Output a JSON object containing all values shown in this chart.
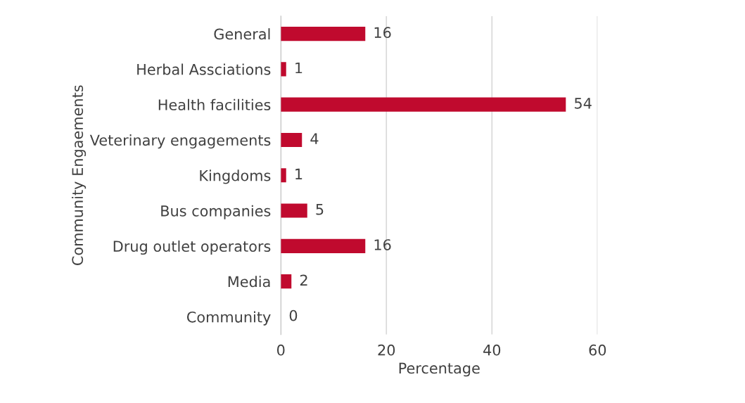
{
  "chart_data": {
    "type": "bar",
    "orientation": "horizontal",
    "categories": [
      "General",
      "Herbal Assciations",
      "Health facilities",
      "Veterinary engagements",
      "Kingdoms",
      "Bus companies",
      "Drug outlet operators",
      "Media",
      "Community"
    ],
    "values": [
      16,
      1,
      54,
      4,
      1,
      5,
      16,
      2,
      0
    ],
    "color": "#c00a2e",
    "xlim": [
      0,
      60
    ],
    "xticks": [
      0,
      20,
      40,
      60
    ],
    "xlabel": "Percentage",
    "ylabel": "Community Engaements",
    "grid": "x",
    "data_labels": true,
    "legend": false
  }
}
